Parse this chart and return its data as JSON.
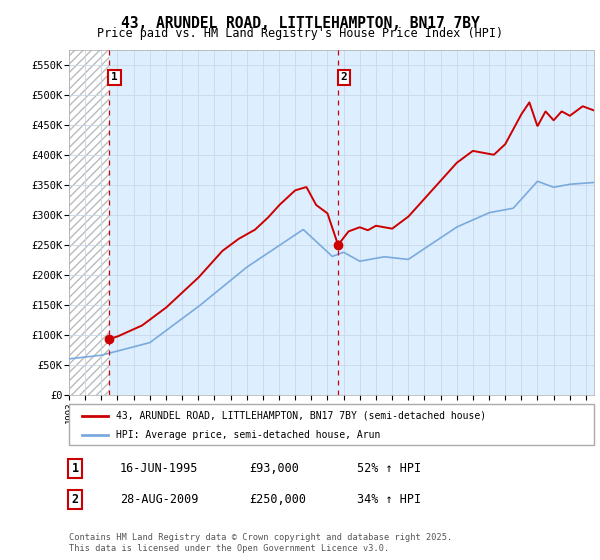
{
  "title_line1": "43, ARUNDEL ROAD, LITTLEHAMPTON, BN17 7BY",
  "title_line2": "Price paid vs. HM Land Registry's House Price Index (HPI)",
  "xlim": [
    1993.0,
    2025.5
  ],
  "ylim": [
    0,
    575000
  ],
  "yticks": [
    0,
    50000,
    100000,
    150000,
    200000,
    250000,
    300000,
    350000,
    400000,
    450000,
    500000,
    550000
  ],
  "ytick_labels": [
    "£0",
    "£50K",
    "£100K",
    "£150K",
    "£200K",
    "£250K",
    "£300K",
    "£350K",
    "£400K",
    "£450K",
    "£500K",
    "£550K"
  ],
  "xtick_years": [
    1993,
    1994,
    1995,
    1996,
    1997,
    1998,
    1999,
    2000,
    2001,
    2002,
    2003,
    2004,
    2005,
    2006,
    2007,
    2008,
    2009,
    2010,
    2011,
    2012,
    2013,
    2014,
    2015,
    2016,
    2017,
    2018,
    2019,
    2020,
    2021,
    2022,
    2023,
    2024,
    2025
  ],
  "sale1_x": 1995.46,
  "sale1_y": 93000,
  "sale1_label": "1",
  "sale2_x": 2009.65,
  "sale2_y": 250000,
  "sale2_label": "2",
  "red_line_color": "#cc0000",
  "blue_line_color": "#7aaadd",
  "grid_color": "#c8d8e8",
  "background_color": "#ddeeff",
  "legend_entry1": "43, ARUNDEL ROAD, LITTLEHAMPTON, BN17 7BY (semi-detached house)",
  "legend_entry2": "HPI: Average price, semi-detached house, Arun",
  "annotation1_date": "16-JUN-1995",
  "annotation1_price": "£93,000",
  "annotation1_hpi": "52% ↑ HPI",
  "annotation2_date": "28-AUG-2009",
  "annotation2_price": "£250,000",
  "annotation2_hpi": "34% ↑ HPI",
  "footer": "Contains HM Land Registry data © Crown copyright and database right 2025.\nThis data is licensed under the Open Government Licence v3.0."
}
